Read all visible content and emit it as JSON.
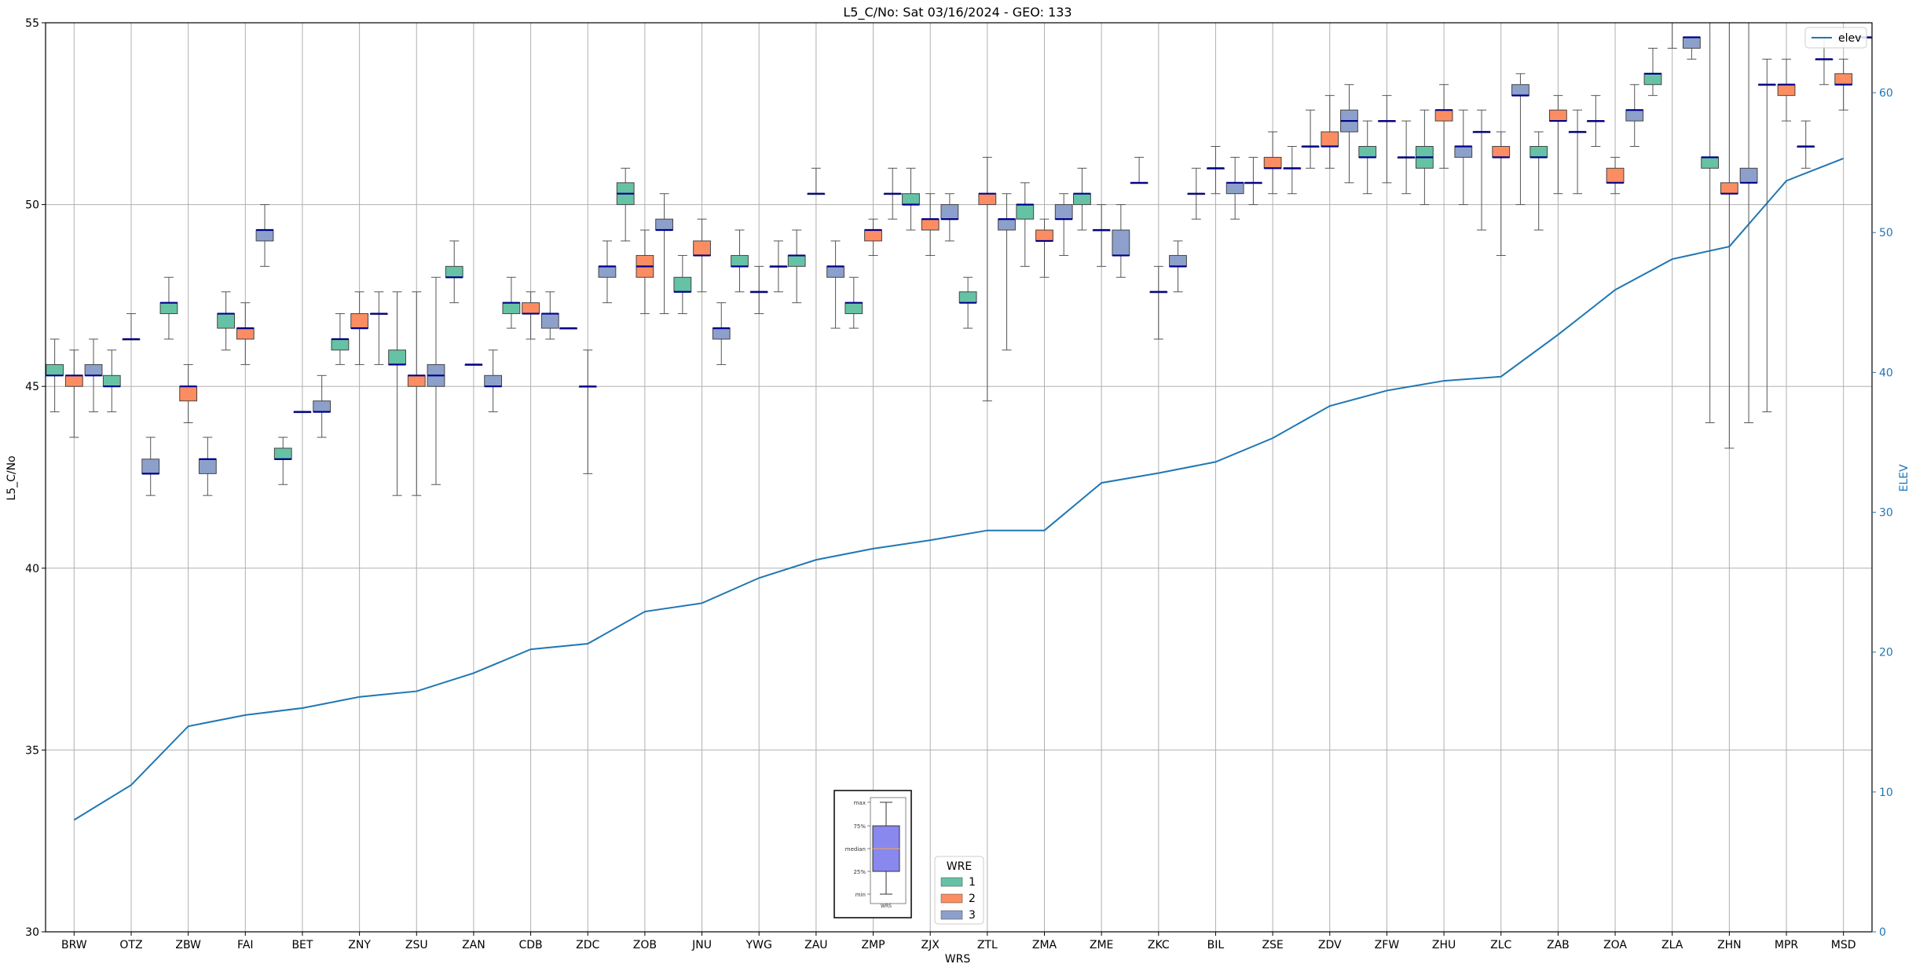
{
  "chart_data": {
    "type": "box",
    "title": "L5_C/No: Sat 03/16/2024 - GEO: 133",
    "xlabel": "WRS",
    "ylabel": "L5_C/No",
    "y2label": "ELEV",
    "ylim": [
      30,
      55
    ],
    "y2lim": [
      0,
      65
    ],
    "yticks": [
      30,
      35,
      40,
      45,
      50,
      55
    ],
    "y2ticks": [
      0,
      10,
      20,
      30,
      40,
      50,
      60
    ],
    "grid": true,
    "categories": [
      "BRW",
      "OTZ",
      "ZBW",
      "FAI",
      "BET",
      "ZNY",
      "ZSU",
      "ZAN",
      "CDB",
      "ZDC",
      "ZOB",
      "JNU",
      "YWG",
      "ZAU",
      "ZMP",
      "ZJX",
      "ZTL",
      "ZMA",
      "ZME",
      "ZKC",
      "BIL",
      "ZSE",
      "ZDV",
      "ZFW",
      "ZHU",
      "ZLC",
      "ZAB",
      "ZOA",
      "ZLA",
      "ZHN",
      "MPR",
      "MSD"
    ],
    "colors": {
      "1": "#66c2a5",
      "2": "#fc8d62",
      "3": "#8da0cb",
      "median": "#00008b",
      "elev": "#1f77b4",
      "whisker": "#555555"
    },
    "legend": {
      "title": "WRE",
      "entries": [
        "1",
        "2",
        "3"
      ],
      "placement": "lower-center"
    },
    "legend2": {
      "entries": [
        "elev"
      ],
      "placement": "upper-right"
    },
    "key_labels": [
      "max",
      "75%",
      "median",
      "25%",
      "min"
    ],
    "key_xlabel": "WRS",
    "boxes": [
      [
        [
          44.3,
          45.3,
          45.3,
          45.6,
          46.3
        ],
        [
          43.6,
          45.0,
          45.3,
          45.3,
          46.0
        ],
        [
          44.3,
          45.3,
          45.3,
          45.6,
          46.3
        ]
      ],
      [
        [
          44.3,
          45.0,
          45.0,
          45.3,
          46.0
        ],
        [
          46.3,
          46.3,
          46.3,
          46.3,
          47.0
        ],
        [
          42.0,
          42.6,
          42.6,
          43.0,
          43.6
        ]
      ],
      [
        [
          46.3,
          47.0,
          47.3,
          47.3,
          48.0
        ],
        [
          44.0,
          44.6,
          45.0,
          45.0,
          45.6
        ],
        [
          42.0,
          42.6,
          43.0,
          43.0,
          43.6
        ]
      ],
      [
        [
          46.0,
          46.6,
          47.0,
          47.0,
          47.6
        ],
        [
          45.6,
          46.3,
          46.6,
          46.6,
          47.3
        ],
        [
          48.3,
          49.0,
          49.3,
          49.3,
          50.0
        ]
      ],
      [
        [
          42.3,
          43.0,
          43.0,
          43.3,
          43.6
        ],
        [
          44.3,
          44.3,
          44.3,
          44.3,
          44.3
        ],
        [
          43.6,
          44.3,
          44.3,
          44.6,
          45.3
        ]
      ],
      [
        [
          45.6,
          46.0,
          46.3,
          46.3,
          47.0
        ],
        [
          45.6,
          46.6,
          46.6,
          47.0,
          47.6
        ],
        [
          45.6,
          47.0,
          47.0,
          47.0,
          47.6
        ]
      ],
      [
        [
          42.0,
          45.6,
          45.6,
          46.0,
          47.6
        ],
        [
          42.0,
          45.0,
          45.3,
          45.3,
          47.6
        ],
        [
          42.3,
          45.0,
          45.3,
          45.6,
          48.0
        ]
      ],
      [
        [
          47.3,
          48.0,
          48.0,
          48.3,
          49.0
        ],
        [
          45.6,
          45.6,
          45.6,
          45.6,
          45.6
        ],
        [
          44.3,
          45.0,
          45.0,
          45.3,
          46.0
        ]
      ],
      [
        [
          46.6,
          47.0,
          47.3,
          47.3,
          48.0
        ],
        [
          46.3,
          47.0,
          47.0,
          47.3,
          47.6
        ],
        [
          46.3,
          46.6,
          47.0,
          47.0,
          47.6
        ]
      ],
      [
        [
          46.6,
          46.6,
          46.6,
          46.6,
          46.6
        ],
        [
          42.6,
          45.0,
          45.0,
          45.0,
          46.0
        ],
        [
          47.3,
          48.0,
          48.3,
          48.3,
          49.0
        ]
      ],
      [
        [
          49.0,
          50.0,
          50.3,
          50.6,
          51.0
        ],
        [
          47.0,
          48.0,
          48.3,
          48.6,
          49.3
        ],
        [
          47.0,
          49.3,
          49.3,
          49.6,
          50.3
        ]
      ],
      [
        [
          47.0,
          47.6,
          47.6,
          48.0,
          48.6
        ],
        [
          47.6,
          48.6,
          48.6,
          49.0,
          49.6
        ],
        [
          45.6,
          46.3,
          46.6,
          46.6,
          47.3
        ]
      ],
      [
        [
          47.6,
          48.3,
          48.3,
          48.6,
          49.3
        ],
        [
          47.0,
          47.6,
          47.6,
          47.6,
          48.3
        ],
        [
          47.6,
          48.3,
          48.3,
          48.3,
          49.0
        ]
      ],
      [
        [
          47.3,
          48.3,
          48.6,
          48.6,
          49.3
        ],
        [
          50.3,
          50.3,
          50.3,
          50.3,
          51.0
        ],
        [
          46.6,
          48.0,
          48.3,
          48.3,
          49.0
        ]
      ],
      [
        [
          46.6,
          47.0,
          47.3,
          47.3,
          48.0
        ],
        [
          48.6,
          49.0,
          49.3,
          49.3,
          49.6
        ],
        [
          49.6,
          50.3,
          50.3,
          50.3,
          51.0
        ]
      ],
      [
        [
          49.3,
          50.0,
          50.0,
          50.3,
          51.0
        ],
        [
          48.6,
          49.3,
          49.6,
          49.6,
          50.3
        ],
        [
          49.0,
          49.6,
          49.6,
          50.0,
          50.3
        ]
      ],
      [
        [
          46.6,
          47.3,
          47.3,
          47.6,
          48.0
        ],
        [
          44.6,
          50.0,
          50.3,
          50.3,
          51.3
        ],
        [
          46.0,
          49.3,
          49.6,
          49.6,
          50.3
        ]
      ],
      [
        [
          48.3,
          49.6,
          50.0,
          50.0,
          50.6
        ],
        [
          48.0,
          49.0,
          49.0,
          49.3,
          49.6
        ],
        [
          48.6,
          49.6,
          49.6,
          50.0,
          50.3
        ]
      ],
      [
        [
          49.3,
          50.0,
          50.3,
          50.3,
          51.0
        ],
        [
          48.3,
          49.3,
          49.3,
          49.3,
          50.0
        ],
        [
          48.0,
          48.6,
          48.6,
          49.3,
          50.0
        ]
      ],
      [
        [
          50.6,
          50.6,
          50.6,
          50.6,
          51.3
        ],
        [
          46.3,
          47.6,
          47.6,
          47.6,
          48.3
        ],
        [
          47.6,
          48.3,
          48.3,
          48.6,
          49.0
        ]
      ],
      [
        [
          49.6,
          50.3,
          50.3,
          50.3,
          51.0
        ],
        [
          50.3,
          51.0,
          51.0,
          51.0,
          51.6
        ],
        [
          49.6,
          50.3,
          50.6,
          50.6,
          51.3
        ]
      ],
      [
        [
          50.0,
          50.6,
          50.6,
          50.6,
          51.3
        ],
        [
          50.3,
          51.0,
          51.0,
          51.3,
          52.0
        ],
        [
          50.3,
          51.0,
          51.0,
          51.0,
          51.6
        ]
      ],
      [
        [
          51.0,
          51.6,
          51.6,
          51.6,
          52.6
        ],
        [
          51.0,
          51.6,
          51.6,
          52.0,
          53.0
        ],
        [
          50.6,
          52.0,
          52.3,
          52.6,
          53.3
        ]
      ],
      [
        [
          50.3,
          51.3,
          51.3,
          51.6,
          52.3
        ],
        [
          50.6,
          52.3,
          52.3,
          52.3,
          53.0
        ],
        [
          50.3,
          51.3,
          51.3,
          51.3,
          52.3
        ]
      ],
      [
        [
          50.0,
          51.0,
          51.3,
          51.6,
          52.6
        ],
        [
          51.0,
          52.3,
          52.6,
          52.6,
          53.3
        ],
        [
          50.0,
          51.3,
          51.6,
          51.6,
          52.6
        ]
      ],
      [
        [
          49.3,
          52.0,
          52.0,
          52.0,
          52.6
        ],
        [
          48.6,
          51.3,
          51.3,
          51.6,
          52.0
        ],
        [
          50.0,
          53.0,
          53.0,
          53.3,
          53.6
        ]
      ],
      [
        [
          49.3,
          51.3,
          51.3,
          51.6,
          52.0
        ],
        [
          50.3,
          52.3,
          52.3,
          52.6,
          53.0
        ],
        [
          50.3,
          52.0,
          52.0,
          52.0,
          52.6
        ]
      ],
      [
        [
          51.6,
          52.3,
          52.3,
          52.3,
          53.0
        ],
        [
          50.3,
          50.6,
          50.6,
          51.0,
          51.3
        ],
        [
          51.6,
          52.3,
          52.6,
          52.6,
          53.3
        ]
      ],
      [
        [
          53.0,
          53.3,
          53.6,
          53.6,
          54.3
        ],
        [
          54.3,
          55.3,
          55.3,
          55.3,
          55.6
        ],
        [
          54.0,
          54.3,
          54.6,
          54.6,
          54.6
        ]
      ],
      [
        [
          44.0,
          51.0,
          51.3,
          51.3,
          55.0
        ],
        [
          43.3,
          50.3,
          50.3,
          50.6,
          55.0
        ],
        [
          44.0,
          50.6,
          50.6,
          51.0,
          55.0
        ]
      ],
      [
        [
          44.3,
          53.3,
          53.3,
          53.3,
          54.0
        ],
        [
          52.3,
          53.0,
          53.3,
          53.3,
          54.0
        ],
        [
          51.0,
          51.6,
          51.6,
          51.6,
          52.3
        ]
      ],
      [
        [
          53.3,
          54.0,
          54.0,
          54.0,
          54.6
        ],
        [
          52.6,
          53.3,
          53.3,
          53.6,
          54.0
        ],
        [
          54.6,
          54.6,
          54.6,
          54.6,
          54.6
        ]
      ]
    ],
    "elev": [
      8.0,
      10.5,
      14.7,
      15.5,
      16.0,
      16.8,
      17.2,
      18.5,
      20.2,
      20.6,
      22.9,
      23.5,
      25.3,
      26.6,
      27.4,
      28.0,
      28.7,
      28.7,
      32.1,
      32.8,
      33.6,
      35.3,
      37.6,
      38.7,
      39.4,
      39.7,
      42.7,
      45.9,
      48.1,
      49.0,
      53.7,
      55.3
    ]
  }
}
